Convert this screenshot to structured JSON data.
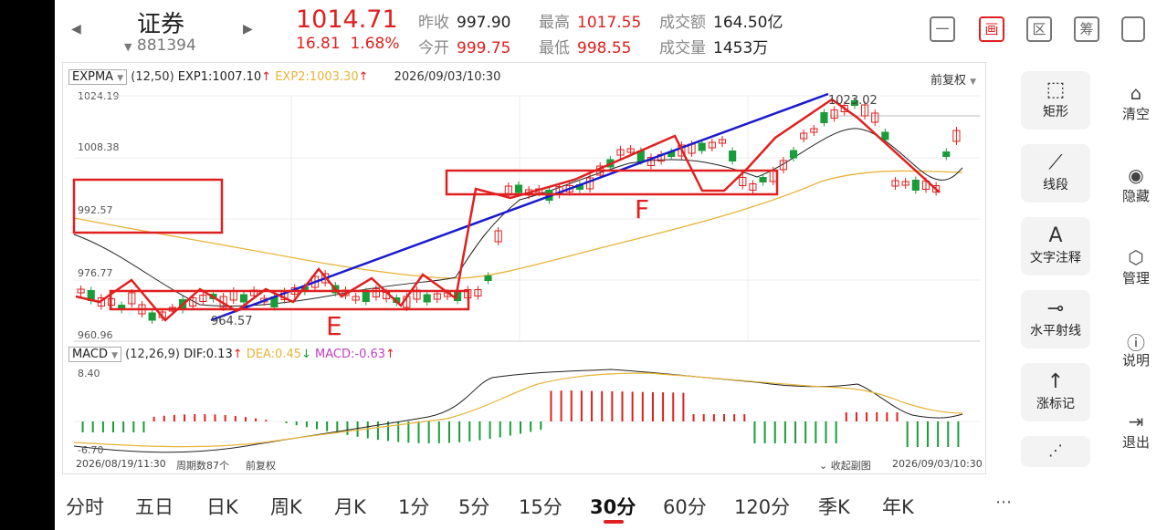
{
  "header": {
    "title": "证券",
    "code": "881394",
    "price": "1014.71",
    "change": "16.81",
    "change_pct": "1.68%",
    "quotes": [
      {
        "label": "昨收",
        "value": "997.90",
        "color": "normal"
      },
      {
        "label": "今开",
        "value": "999.75",
        "color": "red"
      },
      {
        "label": "最高",
        "value": "1017.55",
        "color": "red"
      },
      {
        "label": "最低",
        "value": "998.55",
        "color": "red"
      },
      {
        "label": "成交额",
        "value": "164.50亿",
        "color": "normal"
      },
      {
        "label": "成交量",
        "value": "1453万",
        "color": "normal"
      }
    ],
    "tool_icons": [
      "minus-icon",
      "draw-icon",
      "range-icon",
      "chips-icon",
      "devices-icon"
    ],
    "tool_labels": [
      "一",
      "画",
      "区",
      "筹",
      ""
    ]
  },
  "main_chart": {
    "indicator": "EXPMA",
    "params": "(12,50)",
    "exp1_label": "EXP1:1007.10",
    "exp2_label": "EXP2:1003.30",
    "datetime": "2026/09/03/10:30",
    "adjust": "前复权",
    "y_ticks": [
      "1024.19",
      "1008.38",
      "992.57",
      "976.77",
      "960.96"
    ],
    "high_label": "1023.02",
    "low_label": "964.57",
    "annotation_e": "E",
    "annotation_f": "F",
    "colors": {
      "up": "#e02020",
      "down": "#1a9c3a",
      "trend": "#1a1ad0",
      "exp1": "#222222",
      "exp2": "#e8b43a"
    }
  },
  "macd": {
    "indicator": "MACD",
    "params": "(12,26,9)",
    "dif_label": "DIF:0.13",
    "dea_label": "DEA:0.45",
    "macd_label": "MACD:-0.63",
    "y_top": "8.40",
    "y_bottom": "-6.70",
    "collapse_label": "收起副图"
  },
  "footer": {
    "start_date": "2026/08/19/11:30",
    "period_count": "周期数87个",
    "adjust": "前复权",
    "end_date": "2026/09/03/10:30"
  },
  "draw_tools": [
    {
      "label": "矩形",
      "icon": "rectangle-icon"
    },
    {
      "label": "线段",
      "icon": "line-segment-icon"
    },
    {
      "label": "文字注释",
      "icon": "text-icon"
    },
    {
      "label": "水平射线",
      "icon": "horizontal-ray-icon"
    },
    {
      "label": "涨标记",
      "icon": "up-mark-icon"
    }
  ],
  "side_tools": [
    {
      "label": "清空",
      "icon": "clear-icon"
    },
    {
      "label": "隐藏",
      "icon": "eye-icon"
    },
    {
      "label": "管理",
      "icon": "manage-icon"
    },
    {
      "label": "说明",
      "icon": "help-icon"
    },
    {
      "label": "退出",
      "icon": "exit-icon"
    }
  ],
  "period_tabs": [
    "分时",
    "五日",
    "日K",
    "周K",
    "月K",
    "1分",
    "5分",
    "15分",
    "30分",
    "60分",
    "120分",
    "季K",
    "年K"
  ],
  "active_tab": "30分"
}
